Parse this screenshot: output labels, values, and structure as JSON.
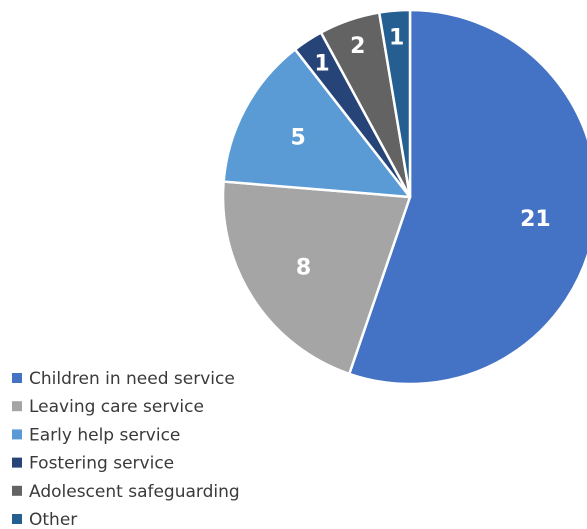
{
  "chart_data": {
    "type": "pie",
    "title": "",
    "legend_position": "bottom-left",
    "start_angle_deg": 0,
    "direction": "clockwise",
    "slices": [
      {
        "label": "Children in need service",
        "value": 21,
        "data_label": "21",
        "color": "#4472c4"
      },
      {
        "label": "Leaving care service",
        "value": 8,
        "data_label": "8",
        "color": "#a5a5a5"
      },
      {
        "label": "Early help service",
        "value": 5,
        "data_label": "5",
        "color": "#5b9bd5"
      },
      {
        "label": "Fostering service",
        "value": 1,
        "data_label": "1",
        "color": "#264478"
      },
      {
        "label": "Adolescent safeguarding",
        "value": 2,
        "data_label": "2",
        "color": "#636363"
      },
      {
        "label": "Other",
        "value": 1,
        "data_label": "1",
        "color": "#255e91"
      }
    ]
  }
}
